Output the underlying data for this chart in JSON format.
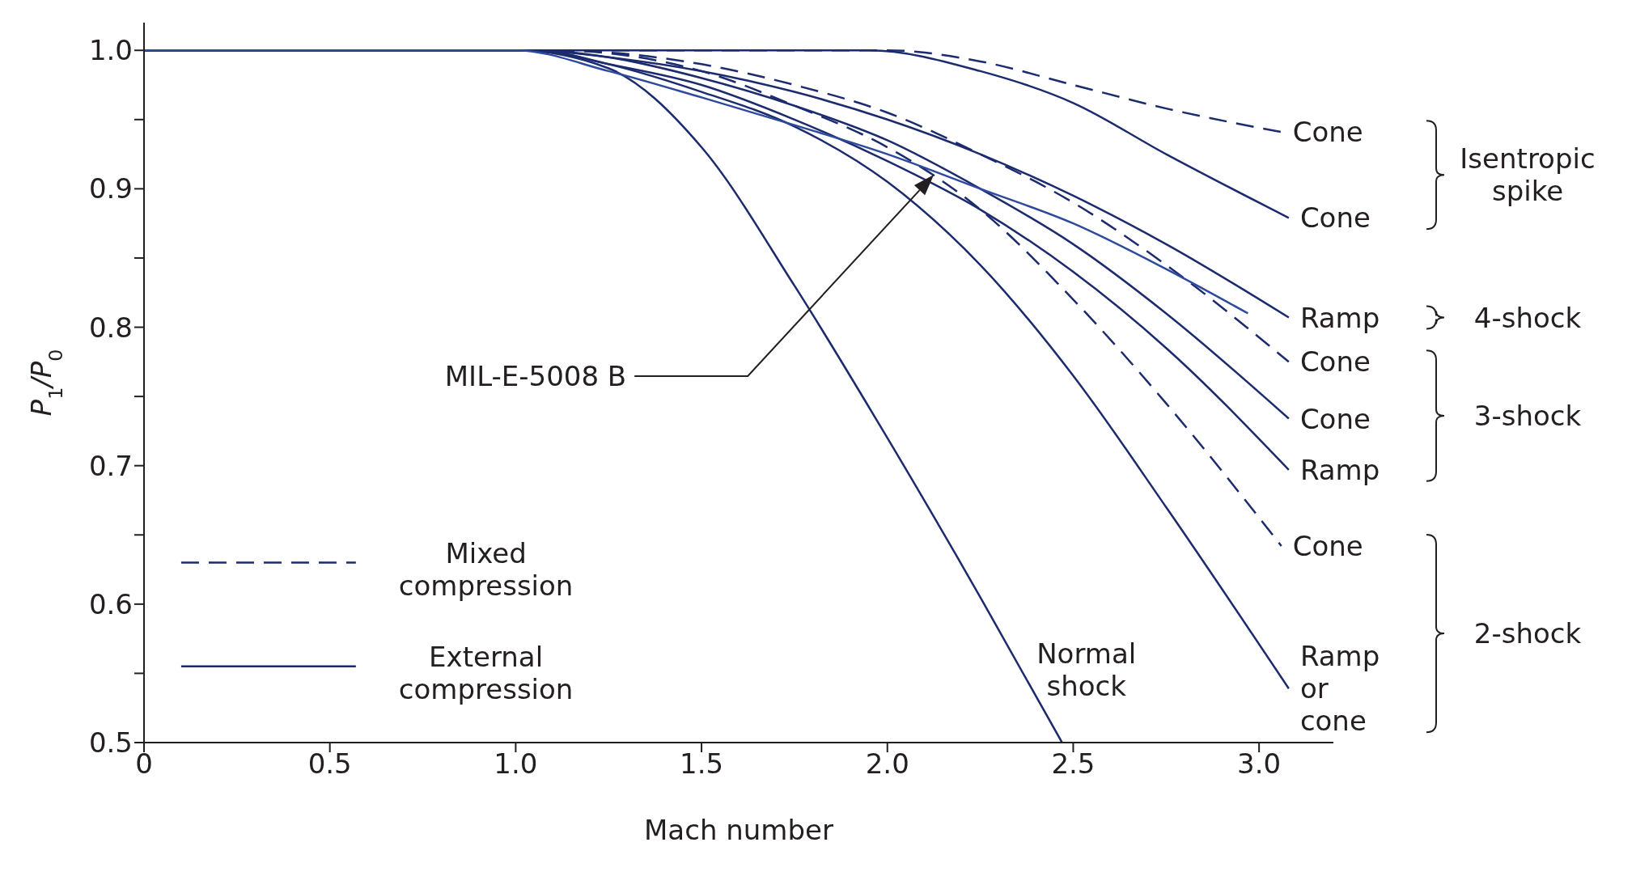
{
  "chart_data": {
    "type": "line",
    "xlabel": "Mach number",
    "ylabel": "P$_{1}$/P$_{0}$",
    "xlim": [
      0,
      3.2
    ],
    "ylim": [
      0.5,
      1.02
    ],
    "xticks": [
      {
        "value": 0,
        "label": "0"
      },
      {
        "value": 0.5,
        "label": "0.5"
      },
      {
        "value": 1,
        "label": "1.0"
      },
      {
        "value": 1.5,
        "label": "1.5"
      },
      {
        "value": 2,
        "label": "2.0"
      },
      {
        "value": 2.5,
        "label": "2.5"
      },
      {
        "value": 3,
        "label": "3.0"
      }
    ],
    "yticks": [
      {
        "value": 0.5,
        "label": "0.5"
      },
      {
        "value": 0.55,
        "label": null
      },
      {
        "value": 0.6,
        "label": "0.6"
      },
      {
        "value": 0.65,
        "label": null
      },
      {
        "value": 0.7,
        "label": "0.7"
      },
      {
        "value": 0.75,
        "label": null
      },
      {
        "value": 0.8,
        "label": "0.8"
      },
      {
        "value": 0.85,
        "label": null
      },
      {
        "value": 0.9,
        "label": "0.9"
      },
      {
        "value": 0.95,
        "label": null
      },
      {
        "value": 1,
        "label": "1.0"
      }
    ],
    "marker": "none",
    "series": [
      {
        "name": "Cone",
        "color": "#1c2b6e",
        "line_style": "dashed",
        "x": [
          0,
          2.0,
          2.25,
          2.5,
          2.75,
          3.06
        ],
        "values": [
          1,
          1,
          0.992,
          0.975,
          0.958,
          0.941
        ]
      },
      {
        "name": "Cone",
        "color": "#1c2b6e",
        "line_style": "solid",
        "x": [
          0,
          1.95,
          2.25,
          2.5,
          2.75,
          3.08
        ],
        "values": [
          1,
          1,
          0.985,
          0.962,
          0.925,
          0.879
        ]
      },
      {
        "name": "Ramp",
        "color": "#1c2b6e",
        "line_style": "solid",
        "x": [
          0,
          1.05,
          1.25,
          1.5,
          1.75,
          2.0,
          2.25,
          2.5,
          2.75,
          3.08
        ],
        "values": [
          1,
          1,
          0.995,
          0.985,
          0.97,
          0.95,
          0.925,
          0.895,
          0.86,
          0.807
        ]
      },
      {
        "name": "Cone",
        "color": "#1c2b6e",
        "line_style": "dashed",
        "x": [
          0,
          1.1,
          1.5,
          1.75,
          2.0,
          2.25,
          2.5,
          2.75,
          3.08
        ],
        "values": [
          1,
          1,
          0.99,
          0.975,
          0.955,
          0.925,
          0.89,
          0.845,
          0.775
        ]
      },
      {
        "name": "Cone",
        "color": "#1c2b6e",
        "line_style": "solid",
        "x": [
          0,
          1.05,
          1.25,
          1.5,
          1.75,
          2.0,
          2.25,
          2.5,
          2.75,
          3.08
        ],
        "values": [
          1,
          1,
          0.995,
          0.98,
          0.96,
          0.935,
          0.9,
          0.86,
          0.81,
          0.734
        ]
      },
      {
        "name": "Ramp",
        "color": "#1c2b6e",
        "line_style": "solid",
        "x": [
          0,
          1.05,
          1.25,
          1.5,
          1.75,
          2.0,
          2.25,
          2.5,
          2.75,
          3.08
        ],
        "values": [
          1,
          1,
          0.99,
          0.975,
          0.95,
          0.92,
          0.885,
          0.84,
          0.785,
          0.697
        ]
      },
      {
        "name": "Cone",
        "color": "#1c2b6e",
        "line_style": "dashed",
        "x": [
          0,
          1.1,
          1.5,
          1.75,
          2.0,
          2.25,
          2.5,
          2.75,
          3.06
        ],
        "values": [
          1,
          1,
          0.985,
          0.96,
          0.93,
          0.885,
          0.82,
          0.745,
          0.642
        ]
      },
      {
        "name": "Ramp or cone",
        "color": "#1c2b6e",
        "line_style": "solid",
        "x": [
          0,
          1.05,
          1.25,
          1.5,
          1.75,
          2.0,
          2.25,
          2.5,
          2.75,
          3.08
        ],
        "values": [
          1,
          1,
          0.99,
          0.97,
          0.945,
          0.905,
          0.845,
          0.765,
          0.67,
          0.539
        ]
      },
      {
        "name": "Normal shock",
        "color": "#1c2b6e",
        "line_style": "solid",
        "x": [
          0,
          1.0,
          1.25,
          1.5,
          1.75,
          2.0,
          2.25,
          2.47
        ],
        "values": [
          1,
          1,
          0.987,
          0.93,
          0.83,
          0.72,
          0.605,
          0.5
        ]
      },
      {
        "color": "#2e4a9e",
        "line_style": "solid",
        "x": [
          0,
          1.0,
          1.25,
          1.5,
          1.75,
          2.0,
          2.25,
          2.5,
          2.75,
          2.97
        ],
        "values": [
          1,
          1,
          0.985,
          0.966,
          0.946,
          0.925,
          0.9,
          0.875,
          0.842,
          0.81
        ]
      }
    ],
    "annotations": [
      "Mixed compression",
      "External compression",
      "Isentropic spike",
      "4-shock",
      "3-shock",
      "2-shock",
      "MIL-E-5008 B"
    ]
  }
}
